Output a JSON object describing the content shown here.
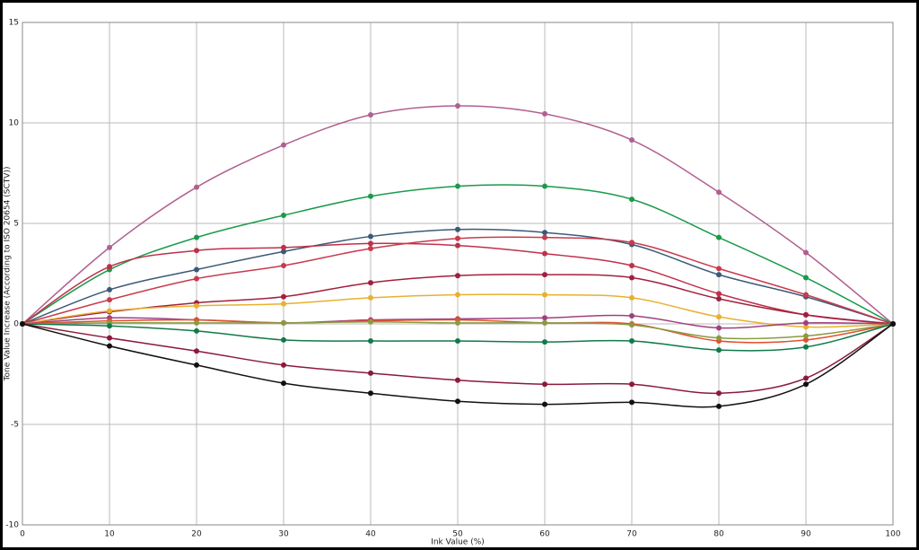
{
  "chart_data": {
    "type": "line",
    "xlabel": "Ink Value (%)",
    "ylabel": "Tone Value Increase (According to ISO 20654 (SCTV))",
    "x": [
      0,
      10,
      20,
      30,
      40,
      50,
      60,
      70,
      80,
      90,
      100
    ],
    "xlim": [
      0,
      100
    ],
    "xticks": [
      0,
      10,
      20,
      30,
      40,
      50,
      60,
      70,
      80,
      90,
      100
    ],
    "ylim": [
      -10,
      15
    ],
    "yticks": [
      -10,
      -5,
      0,
      5,
      10,
      15
    ],
    "grid": true,
    "series": [
      {
        "color": "#b0608f",
        "values": [
          0,
          3.8,
          6.8,
          8.9,
          10.4,
          10.85,
          10.45,
          9.15,
          6.55,
          3.55,
          0
        ]
      },
      {
        "color": "#1a9a4a",
        "values": [
          0,
          2.7,
          4.3,
          5.4,
          6.35,
          6.85,
          6.85,
          6.2,
          4.3,
          2.3,
          0
        ]
      },
      {
        "color": "#3a5a78",
        "values": [
          0,
          1.7,
          2.7,
          3.6,
          4.35,
          4.7,
          4.55,
          3.95,
          2.45,
          1.35,
          0
        ]
      },
      {
        "color": "#c0304a",
        "values": [
          0,
          2.85,
          3.65,
          3.8,
          4.0,
          3.9,
          3.5,
          2.9,
          1.5,
          0.45,
          0
        ]
      },
      {
        "color": "#c83a4c",
        "values": [
          0,
          1.2,
          2.25,
          2.9,
          3.75,
          4.25,
          4.3,
          4.05,
          2.75,
          1.45,
          0
        ]
      },
      {
        "color": "#a02040",
        "values": [
          0,
          0.6,
          1.05,
          1.35,
          2.05,
          2.4,
          2.45,
          2.3,
          1.25,
          0.45,
          0
        ]
      },
      {
        "color": "#e8b030",
        "values": [
          0,
          0.65,
          0.9,
          1.0,
          1.3,
          1.45,
          1.45,
          1.3,
          0.35,
          -0.15,
          0
        ]
      },
      {
        "color": "#a04080",
        "values": [
          0,
          0.3,
          0.2,
          0.05,
          0.2,
          0.25,
          0.3,
          0.4,
          -0.2,
          0.05,
          0
        ]
      },
      {
        "color": "#e05030",
        "values": [
          0,
          0.15,
          0.2,
          0.05,
          0.15,
          0.2,
          0.05,
          0.0,
          -0.85,
          -0.8,
          0
        ]
      },
      {
        "color": "#8a9a40",
        "values": [
          0,
          0.05,
          0.05,
          0.05,
          0.1,
          0.05,
          0.05,
          -0.05,
          -0.7,
          -0.6,
          0
        ]
      },
      {
        "color": "#107a4a",
        "values": [
          0,
          -0.1,
          -0.35,
          -0.8,
          -0.85,
          -0.85,
          -0.9,
          -0.85,
          -1.3,
          -1.15,
          0
        ]
      },
      {
        "color": "#8a1a3a",
        "values": [
          0,
          -0.7,
          -1.35,
          -2.05,
          -2.45,
          -2.8,
          -3.0,
          -3.0,
          -3.45,
          -2.7,
          0
        ]
      },
      {
        "color": "#111111",
        "values": [
          0,
          -1.1,
          -2.05,
          -2.95,
          -3.45,
          -3.85,
          -4.0,
          -3.9,
          -4.1,
          -3.0,
          0
        ]
      }
    ]
  }
}
